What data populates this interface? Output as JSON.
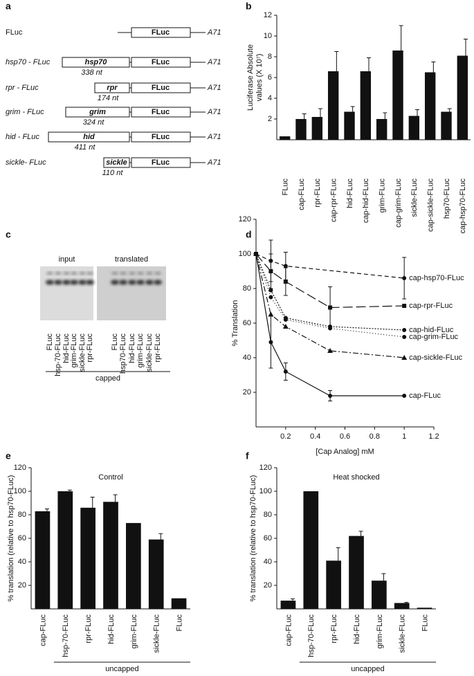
{
  "figure": {
    "constructs": {
      "panel": "a",
      "rows": [
        {
          "label": "FLuc",
          "reporter": "FLuc",
          "tail": "A71"
        },
        {
          "label": "hsp70 - FLuc",
          "leader": "hsp70",
          "length": "338 nt",
          "reporter": "FLuc",
          "tail": "A71"
        },
        {
          "label": "rpr - FLuc",
          "leader": "rpr",
          "length": "174 nt",
          "reporter": "FLuc",
          "tail": "A71"
        },
        {
          "label": "grim - FLuc",
          "leader": "grim",
          "length": "324 nt",
          "reporter": "FLuc",
          "tail": "A71"
        },
        {
          "label": "hid - FLuc",
          "leader": "hid",
          "length": "411 nt",
          "reporter": "FLuc",
          "tail": "A71"
        },
        {
          "label": "sickle- FLuc",
          "leader": "sickle",
          "length": "110 nt",
          "reporter": "FLuc",
          "tail": "A71"
        }
      ]
    },
    "gel": {
      "panel": "c",
      "caption": "capped",
      "groups": [
        {
          "title": "input",
          "lanes": [
            "FLuc",
            "hsp-70-FLuc",
            "hid-FLuc",
            "grim-FLuc",
            "sickle-FLuc",
            "rpr-FLuc"
          ]
        },
        {
          "title": "translated",
          "lanes": [
            "FLuc",
            "hsp70-FLuc",
            "hid-FLuc",
            "grim-FLuc",
            "sickle-FLuc",
            "rpr-FLuc"
          ]
        }
      ]
    }
  },
  "chart_data": [
    {
      "type": "bar",
      "panel": "b",
      "ylabel": [
        "Luciferase Absolute",
        "values (X 10⁷)"
      ],
      "categories": [
        "FLuc",
        "cap-FLuc",
        "rpr-FLuc",
        "cap-rpr-FLuc",
        "hid-FLuc",
        "cap-hid-FLuc",
        "grim-FLuc",
        "cap-grim-FLuc",
        "sickle-FLuc",
        "cap-sickle-FLuc",
        "hsp70-FLuc",
        "cap-hsp70-FLuc"
      ],
      "values": [
        0.33,
        2.0,
        2.2,
        6.6,
        2.7,
        6.6,
        2.0,
        8.6,
        2.3,
        6.5,
        2.7,
        8.1
      ],
      "errors": [
        0,
        0.5,
        0.8,
        1.9,
        0.5,
        1.3,
        0.6,
        2.4,
        0.6,
        1.0,
        0.3,
        1.6
      ],
      "color": "#111111",
      "ylim": [
        0,
        12
      ],
      "yticks": [
        2,
        4,
        6,
        8,
        10,
        12
      ]
    },
    {
      "type": "line",
      "panel": "d",
      "xlabel": "[Cap Analog] mM",
      "ylabel": "% Translation",
      "xlim": [
        0,
        1.2
      ],
      "xticks": [
        0.2,
        0.4,
        0.6,
        0.8,
        1,
        1.2
      ],
      "ylim": [
        0,
        120
      ],
      "yticks": [
        20,
        40,
        60,
        80,
        100,
        120
      ],
      "series": [
        {
          "name": "cap-hsp70-FLuc",
          "color": "#111111",
          "dash": "6,4",
          "marker": "circle",
          "x": [
            0,
            0.1,
            0.2,
            1
          ],
          "values": [
            100,
            96,
            93,
            86
          ],
          "errors": [
            0,
            12,
            8,
            12
          ]
        },
        {
          "name": "cap-rpr-FLuc",
          "color": "#111111",
          "dash": "14,5",
          "marker": "square",
          "x": [
            0,
            0.1,
            0.2,
            0.5,
            1
          ],
          "values": [
            100,
            90,
            84,
            69,
            70
          ],
          "errors": [
            0,
            10,
            8,
            12,
            0
          ]
        },
        {
          "name": "cap-hid-FLuc",
          "color": "#111111",
          "dash": "2,2",
          "marker": "circle",
          "x": [
            0,
            0.1,
            0.2,
            0.5,
            1
          ],
          "values": [
            100,
            79,
            63,
            58,
            56
          ]
        },
        {
          "name": "cap-grim-FLuc",
          "color": "#111111",
          "dash": "1,3",
          "marker": "circle",
          "x": [
            0,
            0.1,
            0.2,
            0.5,
            1
          ],
          "values": [
            100,
            75,
            62,
            57,
            52
          ]
        },
        {
          "name": "cap-sickle-FLuc",
          "color": "#111111",
          "dash": "8,3,2,3",
          "marker": "triangle",
          "x": [
            0,
            0.1,
            0.2,
            0.5,
            1
          ],
          "values": [
            100,
            65,
            58,
            44,
            40
          ]
        },
        {
          "name": "cap-FLuc",
          "color": "#111111",
          "dash": "none",
          "marker": "circle",
          "x": [
            0,
            0.1,
            0.2,
            0.5,
            1
          ],
          "values": [
            100,
            49,
            32,
            18,
            18
          ],
          "errors": [
            0,
            15,
            5,
            3,
            0
          ]
        }
      ]
    },
    {
      "type": "bar",
      "panel": "e",
      "title": "Control",
      "ylabel": "% translation (relative to hsp70-FLuc)",
      "group_label": "uncapped",
      "categories": [
        "cap-FLuc",
        "hsp-70-FLuc",
        "rpr-FLuc",
        "hid-FLuc",
        "grim-FLuc",
        "sickle-FLuc",
        "FLuc"
      ],
      "values": [
        83,
        100,
        86,
        91,
        73,
        59,
        9
      ],
      "errors": [
        2,
        1,
        9,
        6,
        0,
        5,
        0
      ],
      "color": "#111111",
      "ylim": [
        0,
        120
      ],
      "yticks": [
        20,
        40,
        60,
        80,
        100,
        120
      ]
    },
    {
      "type": "bar",
      "panel": "f",
      "title": "Heat  shocked",
      "ylabel": "% translation (relative to hsp70-FLuc)",
      "group_label": "uncapped",
      "categories": [
        "cap-FLuc",
        "hsp-70-FLuc",
        "rpr-FLuc",
        "hid-FLuc",
        "grim-FLuc",
        "sickle-FLuc",
        "FLuc"
      ],
      "values": [
        7,
        100,
        41,
        62,
        24,
        5,
        1
      ],
      "errors": [
        1.5,
        0,
        11,
        4,
        6,
        0.5,
        0
      ],
      "color": "#111111",
      "ylim": [
        0,
        120
      ],
      "yticks": [
        20,
        40,
        60,
        80,
        100,
        120
      ]
    }
  ]
}
